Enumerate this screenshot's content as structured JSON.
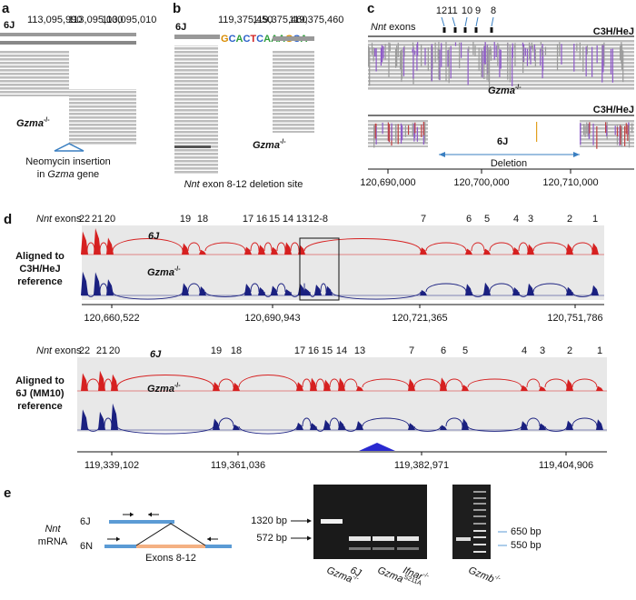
{
  "a": {
    "label": "a",
    "strain": "6J",
    "coords": [
      "113,095,990",
      "113,095,000",
      "113,095,010"
    ],
    "sample": {
      "name": "Gzma",
      "sup": "-/-"
    },
    "caption": [
      "Neomycin insertion",
      "in",
      "Gzma",
      "gene"
    ]
  },
  "b": {
    "label": "b",
    "strain": "6J",
    "coords": [
      "119,375,450",
      "119,375,460",
      "119,375,460"
    ],
    "sequence": "GCACTCAAAGCA",
    "sample": {
      "name": "Gzma",
      "sup": "-/-"
    },
    "caption": [
      "Nnt",
      "exon 8-12 deletion site"
    ]
  },
  "c": {
    "label": "c",
    "exons_title": [
      "Nnt",
      "exons"
    ],
    "exons": [
      "12",
      "11",
      "10",
      "9",
      "8"
    ],
    "reference": [
      "C3H/HeJ",
      "C3H/HeJ"
    ],
    "sample": {
      "name": "Gzma",
      "sup": "-/-"
    },
    "strain": "6J",
    "deletion": "Deletion",
    "axis": [
      "120,690,000",
      "120,700,000",
      "120,710,000"
    ]
  },
  "d": {
    "label": "d",
    "plots": [
      {
        "exons_title": [
          "Nnt",
          "exons"
        ],
        "exons": [
          "22",
          "21",
          "20",
          "19",
          "18",
          "17",
          "16",
          "15",
          "14",
          "13",
          "12-8",
          "7",
          "6",
          "5",
          "4",
          "3",
          "2",
          "1"
        ],
        "tracks": [
          {
            "name": "6J"
          },
          {
            "name": "Gzma",
            "sup": "-/-"
          }
        ],
        "side": [
          "Aligned to",
          "C3H/HeJ",
          "reference"
        ],
        "axis": [
          "120,660,522",
          "120,690,943",
          "120,721,365",
          "120,751,786"
        ]
      },
      {
        "exons_title": [
          "Nnt",
          "exons"
        ],
        "exons": [
          "22",
          "21",
          "20",
          "19",
          "18",
          "17",
          "16",
          "15",
          "14",
          "13",
          "7",
          "6",
          "5",
          "4",
          "3",
          "2",
          "1"
        ],
        "tracks": [
          {
            "name": "6J"
          },
          {
            "name": "Gzma",
            "sup": "-/-"
          }
        ],
        "side": [
          "Aligned to",
          "6J (MM10)",
          "reference"
        ],
        "axis": [
          "119,339,102",
          "119,361,036",
          "119,382,971",
          "119,404,906"
        ]
      }
    ]
  },
  "e": {
    "label": "e",
    "gene": [
      "Nnt",
      "mRNA"
    ],
    "isoforms": [
      "6J",
      "6N"
    ],
    "region": "Exons 8-12",
    "sizes_left": [
      "1320 bp",
      "572 bp"
    ],
    "lanes": [
      {
        "name": "Gzma",
        "sup": "-/-"
      },
      {
        "name": "6J"
      },
      {
        "name": "Gzma",
        "sup": "S211A"
      },
      {
        "name": "Ifnar",
        "sup": "-/-"
      },
      {
        "name": "Gzmb",
        "sup": "-/-"
      }
    ],
    "sizes_right": [
      "650 bp",
      "550 bp"
    ]
  }
}
